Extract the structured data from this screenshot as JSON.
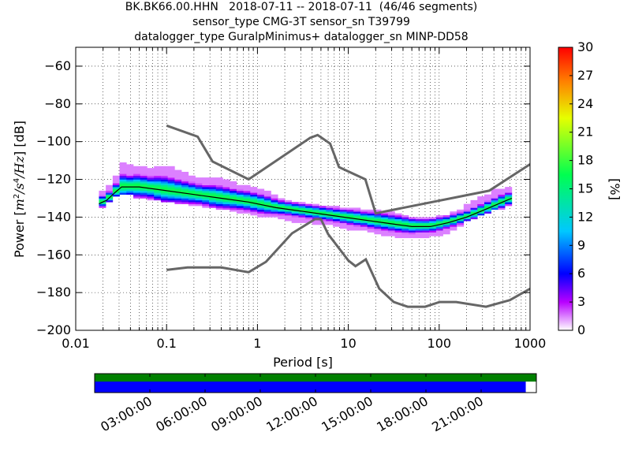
{
  "title": {
    "line1": "BK.BK66.00.HHN   2018-07-11 -- 2018-07-11  (46/46 segments)",
    "line2": "sensor_type CMG-3T sensor_sn T39799",
    "line3": "datalogger_type GuralpMinimus+ datalogger_sn MINP-DD58"
  },
  "chart_data": {
    "type": "heatmap",
    "xlabel": "Period [s]",
    "ylabel": "Power [m²/s⁴/Hz] [dB]",
    "x_scale": "log",
    "xlim": [
      0.01,
      1000
    ],
    "ylim": [
      -200,
      -50
    ],
    "x_ticks": [
      "0.01",
      "0.1",
      "1",
      "10",
      "100",
      "1000"
    ],
    "y_ticks": [
      "−60",
      "−80",
      "−100",
      "−120",
      "−140",
      "−160",
      "−180",
      "−200"
    ],
    "colorbar": {
      "label": "[%]",
      "range": [
        0,
        30
      ],
      "ticks": [
        "0",
        "3",
        "6",
        "9",
        "12",
        "15",
        "18",
        "21",
        "24",
        "27",
        "30"
      ]
    },
    "psd_band": [
      [
        0.018,
        -136,
        -128
      ],
      [
        0.022,
        -133,
        -126
      ],
      [
        0.027,
        -129,
        -121
      ],
      [
        0.032,
        -128,
        -112
      ],
      [
        0.04,
        -128,
        -114
      ],
      [
        0.05,
        -130,
        -114
      ],
      [
        0.063,
        -130,
        -116
      ],
      [
        0.08,
        -131,
        -114
      ],
      [
        0.1,
        -132,
        -114
      ],
      [
        0.13,
        -132,
        -116
      ],
      [
        0.16,
        -133,
        -118
      ],
      [
        0.2,
        -134,
        -120
      ],
      [
        0.25,
        -134,
        -121
      ],
      [
        0.32,
        -135,
        -120
      ],
      [
        0.4,
        -136,
        -121
      ],
      [
        0.5,
        -136,
        -122
      ],
      [
        0.63,
        -137,
        -124
      ],
      [
        0.8,
        -138,
        -125
      ],
      [
        1,
        -139,
        -126
      ],
      [
        1.3,
        -140,
        -128
      ],
      [
        1.6,
        -140,
        -130
      ],
      [
        2,
        -141,
        -132
      ],
      [
        2.5,
        -142,
        -133
      ],
      [
        3.2,
        -143,
        -134
      ],
      [
        4,
        -143,
        -134
      ],
      [
        5,
        -144,
        -135
      ],
      [
        6.3,
        -144,
        -135
      ],
      [
        8,
        -145,
        -136
      ],
      [
        10,
        -146,
        -136
      ],
      [
        13,
        -147,
        -137
      ],
      [
        16,
        -147,
        -137
      ],
      [
        20,
        -148,
        -137
      ],
      [
        25,
        -149,
        -138
      ],
      [
        32,
        -150,
        -139
      ],
      [
        40,
        -151,
        -140
      ],
      [
        50,
        -151,
        -141
      ],
      [
        63,
        -151,
        -142
      ],
      [
        80,
        -150,
        -141
      ],
      [
        100,
        -150,
        -141
      ],
      [
        125,
        -148,
        -140
      ],
      [
        160,
        -146,
        -138
      ],
      [
        200,
        -142,
        -135
      ],
      [
        250,
        -140,
        -132
      ],
      [
        320,
        -138,
        -130
      ],
      [
        400,
        -136,
        -127
      ],
      [
        500,
        -135,
        -126
      ],
      [
        630,
        -133,
        -125
      ]
    ],
    "mean_curve": [
      [
        0.018,
        -133
      ],
      [
        0.022,
        -131
      ],
      [
        0.027,
        -127
      ],
      [
        0.032,
        -124
      ],
      [
        0.05,
        -124
      ],
      [
        0.1,
        -126
      ],
      [
        0.2,
        -128
      ],
      [
        0.4,
        -130
      ],
      [
        0.8,
        -132
      ],
      [
        1.6,
        -135
      ],
      [
        3.2,
        -137
      ],
      [
        6.3,
        -139
      ],
      [
        12.5,
        -141
      ],
      [
        25,
        -143
      ],
      [
        50,
        -145
      ],
      [
        80,
        -145
      ],
      [
        125,
        -143
      ],
      [
        200,
        -140
      ],
      [
        320,
        -136
      ],
      [
        500,
        -132
      ],
      [
        630,
        -130
      ]
    ],
    "nhnm": [
      [
        0.1,
        -91.5
      ],
      [
        0.22,
        -97.4
      ],
      [
        0.32,
        -110.5
      ],
      [
        0.8,
        -120
      ],
      [
        3.8,
        -98
      ],
      [
        4.6,
        -96.5
      ],
      [
        6.3,
        -101
      ],
      [
        7.9,
        -113.5
      ],
      [
        15.4,
        -120
      ],
      [
        20,
        -138
      ],
      [
        354.8,
        -126
      ],
      [
        1000,
        -112
      ]
    ],
    "nlnm": [
      [
        0.1,
        -168
      ],
      [
        0.17,
        -166.7
      ],
      [
        0.4,
        -166.7
      ],
      [
        0.8,
        -169.2
      ],
      [
        1.24,
        -163.7
      ],
      [
        2.4,
        -148.6
      ],
      [
        4.3,
        -141.1
      ],
      [
        5.0,
        -141.1
      ],
      [
        6.0,
        -149
      ],
      [
        10,
        -163
      ],
      [
        12,
        -166
      ],
      [
        15.6,
        -162.4
      ],
      [
        21.9,
        -177.9
      ],
      [
        31.6,
        -185
      ],
      [
        45,
        -187.5
      ],
      [
        70,
        -187.5
      ],
      [
        101,
        -185
      ],
      [
        154,
        -185
      ],
      [
        328,
        -187.5
      ],
      [
        600,
        -184
      ],
      [
        1000,
        -178
      ]
    ],
    "timeline": {
      "tick_labels": [
        "03:00:00",
        "06:00:00",
        "09:00:00",
        "12:00:00",
        "15:00:00",
        "18:00:00",
        "21:00:00"
      ],
      "coverage_fraction": 0.976,
      "colors": {
        "available": "#0000ff",
        "used": "#008000"
      }
    }
  },
  "colors": {
    "model_lines": "#666666",
    "mean_line": "#000000",
    "colormap": [
      "#ffffff",
      "#b800ff",
      "#0000ff",
      "#00c8ff",
      "#00ff50",
      "#e6ff00",
      "#ff8000",
      "#ff0000"
    ]
  }
}
